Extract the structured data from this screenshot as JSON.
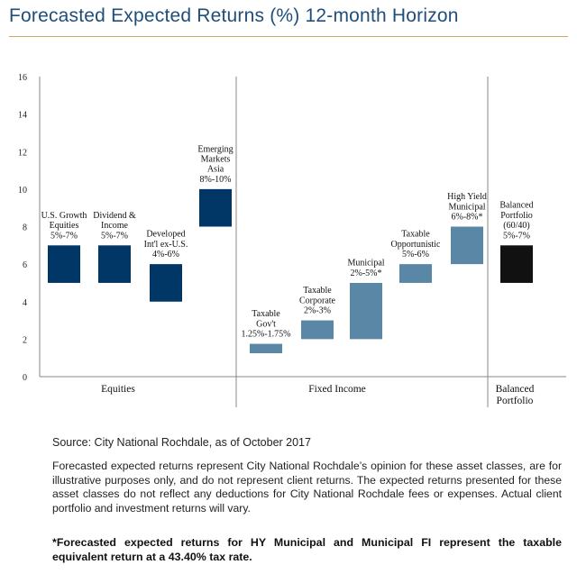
{
  "title": "Forecasted Expected Returns (%) 12-month Horizon",
  "chart_data": {
    "type": "bar",
    "ylim": [
      0,
      16
    ],
    "yticks": [
      0,
      2,
      4,
      6,
      8,
      10,
      12,
      14,
      16
    ],
    "bars": [
      {
        "label": [
          "U.S. Growth",
          "Equities",
          "5%-7%"
        ],
        "low": 5,
        "high": 7,
        "group": "Equities",
        "color": "#003767"
      },
      {
        "label": [
          "Dividend &",
          "Income",
          "5%-7%"
        ],
        "low": 5,
        "high": 7,
        "group": "Equities",
        "color": "#003767"
      },
      {
        "label": [
          "Developed",
          "Int'l ex-U.S.",
          "4%-6%"
        ],
        "low": 4,
        "high": 6,
        "group": "Equities",
        "color": "#003767"
      },
      {
        "label": [
          "Emerging",
          "Markets",
          "Asia",
          "8%-10%"
        ],
        "low": 8,
        "high": 10,
        "group": "Equities",
        "color": "#003767"
      },
      {
        "label": [
          "Taxable",
          "Gov't",
          "1.25%-1.75%"
        ],
        "low": 1.25,
        "high": 1.75,
        "group": "Fixed Income",
        "color": "#5b87a6"
      },
      {
        "label": [
          "Taxable",
          "Corporate",
          "2%-3%"
        ],
        "low": 2,
        "high": 3,
        "group": "Fixed Income",
        "color": "#5b87a6"
      },
      {
        "label": [
          "Municipal",
          "2%-5%*"
        ],
        "low": 2,
        "high": 5,
        "group": "Fixed Income",
        "color": "#5b87a6"
      },
      {
        "label": [
          "Taxable",
          "Opportunistic",
          "5%-6%"
        ],
        "low": 5,
        "high": 6,
        "group": "Fixed Income",
        "color": "#5b87a6"
      },
      {
        "label": [
          "High Yield",
          "Municipal",
          "6%-8%*"
        ],
        "low": 6,
        "high": 8,
        "group": "Fixed Income",
        "color": "#5b87a6"
      },
      {
        "label": [
          "Balanced",
          "Portfolio",
          "(60/40)",
          "5%-7%"
        ],
        "low": 5,
        "high": 7,
        "group": "Balanced Portfolio",
        "color": "#111111"
      }
    ],
    "groups": [
      {
        "label": [
          "Equities"
        ]
      },
      {
        "label": [
          "Fixed Income"
        ]
      },
      {
        "label": [
          "Balanced",
          "Portfolio"
        ]
      }
    ]
  },
  "source": "Source: City National Rochdale, as of October 2017",
  "disclaimer": "Forecasted expected returns represent City National Rochdale’s opinion for these asset classes, are for illustrative purposes only, and do not represent client returns. The expected returns presented for these asset classes do not reflect any deductions for City National Rochdale fees or expenses. Actual client portfolio and investment returns will vary.",
  "footnote": "*Forecasted expected returns for HY Municipal and Municipal FI represent the taxable equivalent return at a 43.40% tax rate."
}
